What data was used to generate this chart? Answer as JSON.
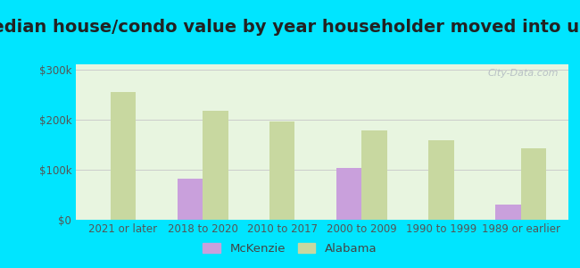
{
  "title": "Median house/condo value by year householder moved into unit",
  "categories": [
    "2021 or later",
    "2018 to 2020",
    "2010 to 2017",
    "2000 to 2009",
    "1990 to 1999",
    "1989 or earlier"
  ],
  "mckenzie": [
    0,
    82000,
    0,
    103000,
    0,
    30000
  ],
  "alabama": [
    255000,
    218000,
    196000,
    178000,
    158000,
    143000
  ],
  "mckenzie_color": "#c9a0dc",
  "alabama_color": "#c8d8a0",
  "background_outer": "#00e5ff",
  "background_inner_tl": "#e8f5e0",
  "background_inner_br": "#f8fff8",
  "yticks": [
    0,
    100000,
    200000,
    300000
  ],
  "ylim": [
    0,
    310000
  ],
  "ylabel_fmt": [
    "$0",
    "$100k",
    "$200k",
    "$300k"
  ],
  "watermark": "City-Data.com",
  "title_fontsize": 14,
  "tick_fontsize": 8.5,
  "legend_fontsize": 9.5,
  "bar_width": 0.32
}
